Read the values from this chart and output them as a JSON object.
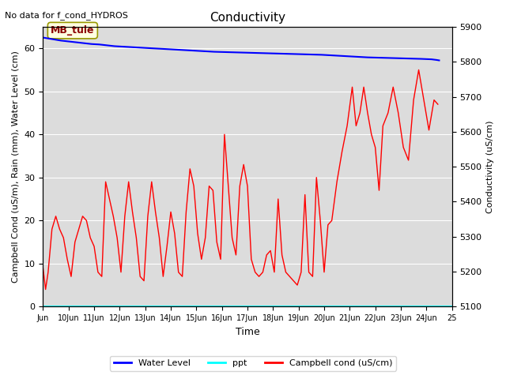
{
  "title": "Conductivity",
  "top_left_text": "No data for f_cond_HYDROS",
  "xlabel": "Time",
  "ylabel_left": "Campbell Cond (uS/m), Rain (mm), Water Level (cm)",
  "ylabel_right": "Conductivity (uS/cm)",
  "ylim_left": [
    0,
    65
  ],
  "ylim_right": [
    5100,
    5900
  ],
  "background_color": "#dcdcdc",
  "annotation_box": "MB_tule",
  "x_ticks": [
    9,
    10,
    11,
    12,
    13,
    14,
    15,
    16,
    17,
    18,
    19,
    20,
    21,
    22,
    23,
    24,
    25
  ],
  "x_tick_labels": [
    "Jun",
    "10Jun",
    "11Jun",
    "12Jun",
    "13Jun",
    "14Jun",
    "15Jun",
    "16Jun",
    "17Jun",
    "18Jun",
    "19Jun",
    "20Jun",
    "21Jun",
    "22Jun",
    "23Jun",
    "24Jun",
    "25"
  ],
  "water_level_x": [
    9.0,
    9.1,
    9.2,
    9.3,
    9.5,
    9.7,
    10.0,
    10.3,
    10.6,
    10.9,
    11.2,
    11.5,
    11.8,
    12.1,
    12.4,
    12.7,
    13.0,
    13.3,
    13.6,
    13.9,
    14.2,
    14.5,
    14.8,
    15.1,
    15.4,
    15.7,
    16.0,
    16.3,
    16.6,
    16.9,
    17.2,
    17.5,
    17.8,
    18.1,
    18.4,
    18.7,
    19.0,
    19.3,
    19.6,
    19.9,
    20.2,
    20.5,
    20.8,
    21.1,
    21.4,
    21.7,
    22.0,
    22.3,
    22.6,
    22.9,
    23.2,
    23.5,
    23.8,
    24.0,
    24.2,
    24.4,
    24.5
  ],
  "water_level_y": [
    62.5,
    62.4,
    62.3,
    62.2,
    62.0,
    61.8,
    61.6,
    61.4,
    61.2,
    61.0,
    60.9,
    60.7,
    60.5,
    60.4,
    60.3,
    60.2,
    60.1,
    60.0,
    59.9,
    59.8,
    59.7,
    59.6,
    59.5,
    59.4,
    59.3,
    59.2,
    59.15,
    59.1,
    59.05,
    59.0,
    58.95,
    58.9,
    58.85,
    58.8,
    58.75,
    58.7,
    58.65,
    58.6,
    58.55,
    58.5,
    58.4,
    58.3,
    58.2,
    58.1,
    58.0,
    57.9,
    57.85,
    57.8,
    57.75,
    57.7,
    57.65,
    57.6,
    57.55,
    57.5,
    57.45,
    57.3,
    57.2
  ],
  "campbell_x": [
    9.0,
    9.1,
    9.2,
    9.35,
    9.5,
    9.65,
    9.8,
    9.95,
    10.1,
    10.25,
    10.4,
    10.55,
    10.7,
    10.85,
    11.0,
    11.15,
    11.3,
    11.45,
    11.6,
    11.75,
    11.9,
    12.05,
    12.2,
    12.35,
    12.5,
    12.65,
    12.8,
    12.95,
    13.1,
    13.25,
    13.4,
    13.55,
    13.7,
    13.85,
    14.0,
    14.15,
    14.3,
    14.45,
    14.6,
    14.75,
    14.9,
    15.05,
    15.2,
    15.35,
    15.5,
    15.65,
    15.8,
    15.95,
    16.1,
    16.25,
    16.4,
    16.55,
    16.7,
    16.85,
    17.0,
    17.15,
    17.3,
    17.45,
    17.6,
    17.75,
    17.9,
    18.05,
    18.2,
    18.35,
    18.5,
    18.65,
    18.8,
    18.95,
    19.1,
    19.25,
    19.4,
    19.55,
    19.7,
    19.85,
    20.0,
    20.15,
    20.3,
    20.5,
    20.7,
    20.9,
    21.1,
    21.25,
    21.4,
    21.55,
    21.7,
    21.85,
    22.0,
    22.15,
    22.3,
    22.5,
    22.7,
    22.9,
    23.1,
    23.3,
    23.5,
    23.7,
    23.9,
    24.1,
    24.3,
    24.45
  ],
  "campbell_y": [
    9,
    4,
    8,
    18,
    21,
    18,
    16,
    11,
    7,
    15,
    18,
    21,
    20,
    16,
    14,
    8,
    7,
    29,
    25,
    21,
    16,
    8,
    21,
    29,
    22,
    16,
    7,
    6,
    21,
    29,
    22,
    16,
    7,
    14,
    22,
    17,
    8,
    7,
    22,
    32,
    28,
    17,
    11,
    16,
    28,
    27,
    15,
    11,
    40,
    28,
    16,
    12,
    28,
    33,
    28,
    11,
    8,
    7,
    8,
    12,
    13,
    8,
    25,
    12,
    8,
    7,
    6,
    5,
    8,
    26,
    8,
    7,
    30,
    20,
    8,
    19,
    20,
    29,
    36,
    42,
    51,
    42,
    45,
    51,
    45,
    40,
    37,
    27,
    42,
    45,
    51,
    45,
    37,
    34,
    48,
    55,
    48,
    41,
    48,
    47
  ]
}
